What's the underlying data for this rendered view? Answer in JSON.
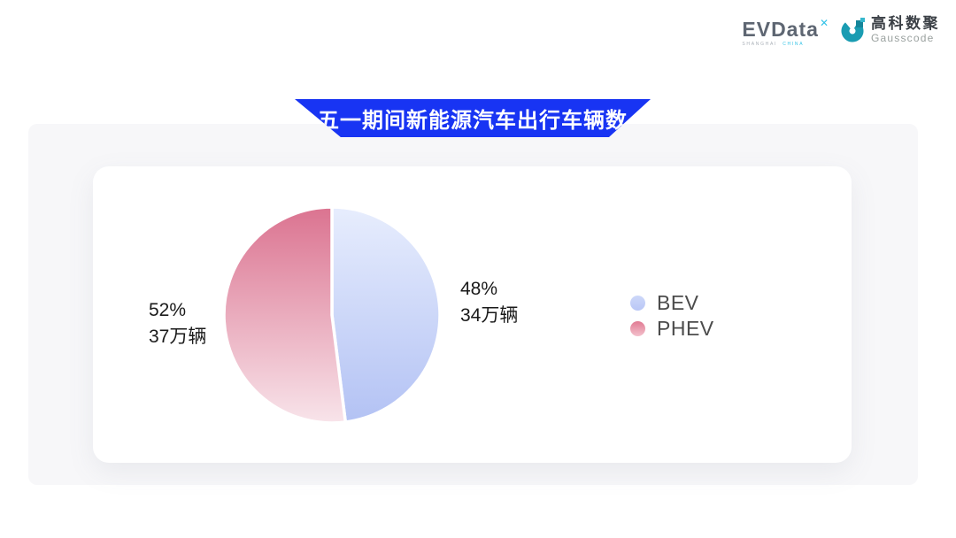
{
  "header": {
    "evdata_logo": {
      "text": "EVData",
      "superscript": "✕",
      "sub_left": "SHANGHAI",
      "sub_right": "CHINA"
    },
    "gausscode_logo": {
      "cn": "高科数聚",
      "en": "Gausscode",
      "icon_color": "#1a9cb2"
    }
  },
  "banner": {
    "title": "五一期间新能源汽车出行车辆数",
    "color": "#1834f3"
  },
  "chart_data": {
    "type": "pie",
    "title": "五一期间新能源汽车出行车辆数",
    "unit": "万辆",
    "start_angle": 90,
    "direction": "clockwise",
    "legend_position": "right",
    "series": [
      {
        "name": "BEV",
        "percent": 48,
        "value": 34,
        "percent_label": "48%",
        "value_label": "34万辆",
        "color_start": "#e7edfd",
        "color_end": "#b3c2f4",
        "dot_start": "#cdd8f9",
        "dot_end": "#b9c7f6"
      },
      {
        "name": "PHEV",
        "percent": 52,
        "value": 37,
        "percent_label": "52%",
        "value_label": "37万辆",
        "color_start": "#db7390",
        "color_end": "#f8e4ea",
        "dot_start": "#e17b93",
        "dot_end": "#f3c0cc"
      }
    ]
  }
}
